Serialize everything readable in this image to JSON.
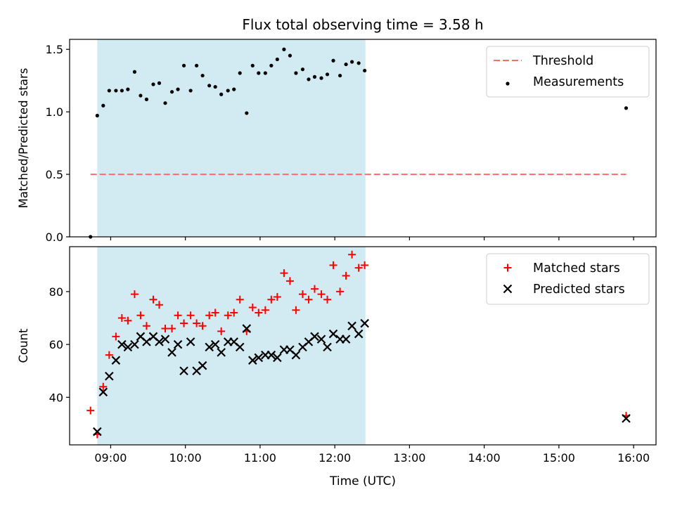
{
  "figure": {
    "title": "Flux total observing time = 3.58 h",
    "xlabel": "Time (UTC)",
    "x_ticks": [
      "09:00",
      "10:00",
      "11:00",
      "12:00",
      "13:00",
      "14:00",
      "15:00",
      "16:00"
    ],
    "x_tick_values_hours": [
      9,
      10,
      11,
      12,
      13,
      14,
      15,
      16
    ],
    "xlim_hours": [
      8.45,
      16.3
    ],
    "shaded_span_hours": [
      8.82,
      12.41
    ],
    "shade_color": "#add8e6"
  },
  "chart_data": [
    {
      "type": "scatter",
      "ylabel": "Matched/Predicted stars",
      "ylim": [
        0,
        1.58
      ],
      "y_ticks": [
        0.0,
        0.5,
        1.0,
        1.5
      ],
      "legend_placement": "top-right",
      "threshold": {
        "name": "Threshold",
        "y": 0.5,
        "x_range": [
          8.73,
          15.9
        ],
        "color": "#ff6b6b"
      },
      "series": [
        {
          "name": "Measurements",
          "color": "#000000",
          "x": [
            8.73,
            8.82,
            8.9,
            8.98,
            9.07,
            9.15,
            9.23,
            9.32,
            9.4,
            9.48,
            9.57,
            9.65,
            9.73,
            9.82,
            9.9,
            9.98,
            10.07,
            10.15,
            10.23,
            10.32,
            10.4,
            10.48,
            10.57,
            10.65,
            10.73,
            10.82,
            10.9,
            10.98,
            11.07,
            11.15,
            11.23,
            11.32,
            11.4,
            11.48,
            11.57,
            11.65,
            11.73,
            11.82,
            11.9,
            11.98,
            12.07,
            12.15,
            12.23,
            12.32,
            12.4,
            15.9
          ],
          "y": [
            0.0,
            0.97,
            1.05,
            1.17,
            1.17,
            1.17,
            1.18,
            1.32,
            1.13,
            1.1,
            1.22,
            1.23,
            1.07,
            1.16,
            1.18,
            1.37,
            1.17,
            1.37,
            1.29,
            1.21,
            1.2,
            1.14,
            1.17,
            1.18,
            1.31,
            0.99,
            1.37,
            1.31,
            1.31,
            1.37,
            1.42,
            1.5,
            1.45,
            1.31,
            1.34,
            1.26,
            1.28,
            1.27,
            1.3,
            1.41,
            1.29,
            1.38,
            1.4,
            1.39,
            1.33,
            1.03
          ]
        }
      ]
    },
    {
      "type": "scatter",
      "ylabel": "Count",
      "ylim": [
        22,
        97
      ],
      "y_ticks": [
        40,
        60,
        80
      ],
      "legend_placement": "top-right",
      "series": [
        {
          "name": "Matched stars",
          "marker": "plus",
          "color": "#ff0000",
          "x": [
            8.73,
            8.82,
            8.9,
            8.98,
            9.07,
            9.15,
            9.23,
            9.32,
            9.4,
            9.48,
            9.57,
            9.65,
            9.73,
            9.82,
            9.9,
            9.98,
            10.07,
            10.15,
            10.23,
            10.32,
            10.4,
            10.48,
            10.57,
            10.65,
            10.73,
            10.82,
            10.9,
            10.98,
            11.07,
            11.15,
            11.23,
            11.32,
            11.4,
            11.48,
            11.57,
            11.65,
            11.73,
            11.82,
            11.9,
            11.98,
            12.07,
            12.15,
            12.23,
            12.32,
            12.4,
            15.9
          ],
          "y": [
            35,
            26,
            44,
            56,
            63,
            70,
            69,
            79,
            71,
            67,
            77,
            75,
            66,
            66,
            71,
            68,
            71,
            68,
            67,
            71,
            72,
            65,
            71,
            72,
            77,
            65,
            74,
            72,
            73,
            77,
            78,
            87,
            84,
            73,
            79,
            77,
            81,
            79,
            77,
            90,
            80,
            86,
            94,
            89,
            90,
            33
          ]
        },
        {
          "name": "Predicted stars",
          "marker": "x",
          "color": "#000000",
          "x": [
            8.82,
            8.9,
            8.98,
            9.07,
            9.15,
            9.23,
            9.32,
            9.4,
            9.48,
            9.57,
            9.65,
            9.73,
            9.82,
            9.9,
            9.98,
            10.07,
            10.15,
            10.23,
            10.32,
            10.4,
            10.48,
            10.57,
            10.65,
            10.73,
            10.82,
            10.9,
            10.98,
            11.07,
            11.15,
            11.23,
            11.32,
            11.4,
            11.48,
            11.57,
            11.65,
            11.73,
            11.82,
            11.9,
            11.98,
            12.07,
            12.15,
            12.23,
            12.32,
            12.4,
            15.9
          ],
          "y": [
            27,
            42,
            48,
            54,
            60,
            59,
            60,
            63,
            61,
            63,
            61,
            62,
            57,
            60,
            50,
            61,
            50,
            52,
            59,
            60,
            57,
            61,
            61,
            59,
            66,
            54,
            55,
            56,
            56,
            55,
            58,
            58,
            56,
            59,
            61,
            63,
            62,
            59,
            64,
            62,
            62,
            67,
            64,
            68,
            32
          ]
        }
      ]
    }
  ]
}
